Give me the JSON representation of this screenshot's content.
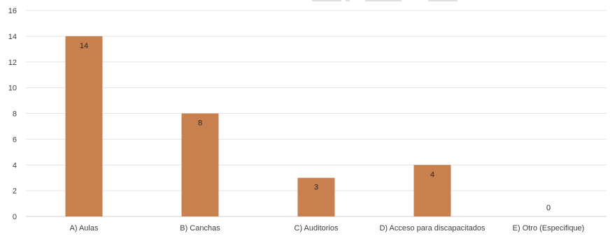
{
  "chart_data": {
    "type": "bar",
    "title": "",
    "xlabel": "",
    "ylabel": "",
    "categories": [
      "A) Aulas",
      "B) Canchas",
      "C) Auditorios",
      "D) Acceso para discapacitados",
      "E) Otro (Especifique)"
    ],
    "values": [
      14,
      8,
      3,
      4,
      0
    ],
    "data_labels": [
      "14",
      "8",
      "3",
      "4",
      "0"
    ],
    "ylim": [
      0,
      16
    ],
    "yticks": [
      0,
      2,
      4,
      6,
      8,
      10,
      12,
      14,
      16
    ],
    "ytick_labels": [
      "0",
      "2",
      "4",
      "6",
      "8",
      "10",
      "12",
      "14",
      "16"
    ],
    "grid": true,
    "legend_position": "top",
    "colors": {
      "bar": "#c9804f",
      "grid": "#e3e3e3",
      "text": "#404040"
    }
  }
}
